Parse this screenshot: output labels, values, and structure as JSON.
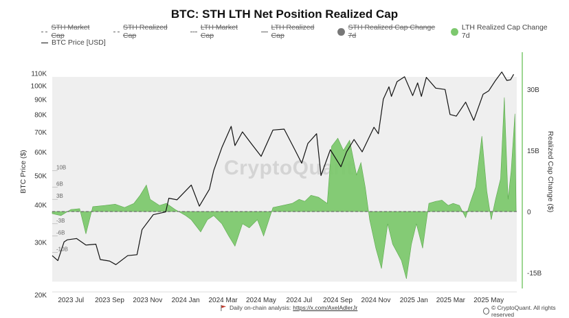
{
  "title": "BTC: STH LTH Net Position Realized Cap",
  "legend": [
    {
      "name": "STH Market Cap",
      "style": "dashed",
      "active": false
    },
    {
      "name": "STH Realized Cap",
      "style": "dashed",
      "active": false
    },
    {
      "name": "LTH Market Cap",
      "style": "dashed",
      "active": false
    },
    {
      "name": "LTH Realized Cap",
      "style": "solid",
      "active": false
    },
    {
      "name": "STH Realized Cap Change 7d",
      "style": "dot",
      "active": false,
      "color": "#777777"
    },
    {
      "name": "LTH Realized Cap Change 7d",
      "style": "dot",
      "active": true,
      "color": "#7dc86e"
    },
    {
      "name": "BTC Price [USD]",
      "style": "solid-dark",
      "active": true,
      "color": "#111111"
    }
  ],
  "watermark": "CryptoQuant",
  "footer": {
    "note": "Daily on-chain analysis:",
    "link": "https://x.com/AxelAdlerJr",
    "credit": "© CryptoQuant. All rights reserved"
  },
  "colors": {
    "price": "#111111",
    "fill": "#7dc86e",
    "fill_edge": "#5aa84c",
    "band": "#efefef",
    "zero": "#555555"
  },
  "chart_data": {
    "type": "line",
    "left_axis": {
      "label": "BTC Price ($)",
      "scale": "log",
      "ticks": [
        20000,
        30000,
        40000,
        50000,
        60000,
        70000,
        80000,
        90000,
        100000,
        110000
      ],
      "tick_labels": [
        "20K",
        "30K",
        "40K",
        "50K",
        "60K",
        "70K",
        "80K",
        "90K",
        "100K",
        "110K"
      ]
    },
    "right_axis": {
      "label": "Realized Cap Change ($)",
      "ticks": [
        -15000000000,
        0,
        15000000000,
        30000000000
      ],
      "tick_labels": [
        "-15B",
        "0",
        "15B",
        "30B"
      ],
      "inner_ticks": [
        10000000000,
        6000000000,
        3000000000,
        -3000000000,
        -6000000000,
        -10000000000
      ],
      "inner_tick_labels": [
        "10B",
        "6B",
        "3B",
        "-3B",
        "-6B",
        "-10B"
      ]
    },
    "x_ticks": [
      "2023-07-01",
      "2023-09-01",
      "2023-11-01",
      "2024-01-01",
      "2024-03-01",
      "2024-05-01",
      "2024-07-01",
      "2024-09-01",
      "2024-11-01",
      "2025-01-01",
      "2025-03-01",
      "2025-05-01"
    ],
    "x_tick_labels": [
      "2023 Jul",
      "2023 Sep",
      "2023 Nov",
      "2024 Jan",
      "2024 Mar",
      "2024 May",
      "2024 Jul",
      "2024 Sep",
      "2024 Nov",
      "2025 Jan",
      "2025 Mar",
      "2025 May"
    ],
    "x_range": [
      "2023-06-01",
      "2025-06-15"
    ],
    "series": [
      {
        "name": "BTC Price [USD]",
        "axis": "left",
        "points": [
          [
            "2023-06-01",
            27000
          ],
          [
            "2023-06-10",
            26000
          ],
          [
            "2023-06-20",
            30000
          ],
          [
            "2023-06-25",
            30500
          ],
          [
            "2023-07-10",
            30800
          ],
          [
            "2023-07-25",
            29300
          ],
          [
            "2023-08-10",
            29500
          ],
          [
            "2023-08-17",
            26200
          ],
          [
            "2023-09-01",
            25900
          ],
          [
            "2023-09-11",
            25200
          ],
          [
            "2023-09-30",
            27000
          ],
          [
            "2023-10-15",
            27200
          ],
          [
            "2023-10-23",
            33000
          ],
          [
            "2023-11-10",
            37000
          ],
          [
            "2023-11-30",
            37800
          ],
          [
            "2023-12-05",
            42000
          ],
          [
            "2023-12-18",
            41500
          ],
          [
            "2024-01-10",
            46500
          ],
          [
            "2024-01-23",
            39500
          ],
          [
            "2024-02-08",
            45000
          ],
          [
            "2024-02-15",
            52000
          ],
          [
            "2024-02-28",
            62000
          ],
          [
            "2024-03-14",
            73000
          ],
          [
            "2024-03-20",
            63000
          ],
          [
            "2024-04-01",
            70000
          ],
          [
            "2024-04-15",
            64000
          ],
          [
            "2024-05-01",
            58000
          ],
          [
            "2024-05-20",
            71000
          ],
          [
            "2024-06-07",
            71500
          ],
          [
            "2024-06-25",
            60500
          ],
          [
            "2024-07-05",
            55000
          ],
          [
            "2024-07-15",
            64000
          ],
          [
            "2024-07-29",
            69000
          ],
          [
            "2024-08-05",
            50000
          ],
          [
            "2024-08-20",
            61000
          ],
          [
            "2024-09-06",
            53500
          ],
          [
            "2024-09-15",
            60000
          ],
          [
            "2024-09-27",
            66000
          ],
          [
            "2024-10-10",
            60000
          ],
          [
            "2024-10-29",
            72500
          ],
          [
            "2024-11-05",
            69000
          ],
          [
            "2024-11-13",
            90000
          ],
          [
            "2024-11-22",
            99000
          ],
          [
            "2024-11-26",
            92000
          ],
          [
            "2024-12-05",
            103000
          ],
          [
            "2024-12-17",
            107000
          ],
          [
            "2024-12-30",
            92500
          ],
          [
            "2025-01-07",
            102000
          ],
          [
            "2025-01-13",
            92000
          ],
          [
            "2025-01-21",
            106500
          ],
          [
            "2025-02-05",
            98000
          ],
          [
            "2025-02-20",
            97000
          ],
          [
            "2025-02-28",
            80000
          ],
          [
            "2025-03-10",
            79000
          ],
          [
            "2025-03-25",
            88000
          ],
          [
            "2025-04-07",
            76500
          ],
          [
            "2025-04-22",
            93500
          ],
          [
            "2025-05-01",
            96000
          ],
          [
            "2025-05-12",
            104000
          ],
          [
            "2025-05-22",
            111000
          ],
          [
            "2025-05-30",
            104000
          ],
          [
            "2025-06-05",
            104500
          ],
          [
            "2025-06-10",
            109000
          ]
        ]
      },
      {
        "name": "LTH Realized Cap Change 7d",
        "axis": "right",
        "points": [
          [
            "2023-06-01",
            -0.5
          ],
          [
            "2023-06-15",
            -1
          ],
          [
            "2023-07-01",
            0.5
          ],
          [
            "2023-07-15",
            0.7
          ],
          [
            "2023-07-25",
            -5.5
          ],
          [
            "2023-08-05",
            1.2
          ],
          [
            "2023-08-25",
            1.5
          ],
          [
            "2023-09-10",
            1.8
          ],
          [
            "2023-09-25",
            1
          ],
          [
            "2023-10-10",
            2
          ],
          [
            "2023-10-20",
            4
          ],
          [
            "2023-10-30",
            6.5
          ],
          [
            "2023-11-05",
            3
          ],
          [
            "2023-11-20",
            1.5
          ],
          [
            "2023-12-01",
            2
          ],
          [
            "2023-12-15",
            0.5
          ],
          [
            "2024-01-01",
            -1
          ],
          [
            "2024-01-10",
            -2
          ],
          [
            "2024-01-25",
            -5
          ],
          [
            "2024-02-05",
            -2
          ],
          [
            "2024-02-15",
            -1
          ],
          [
            "2024-02-28",
            -3
          ],
          [
            "2024-03-10",
            -6
          ],
          [
            "2024-03-20",
            -8.5
          ],
          [
            "2024-04-01",
            -3
          ],
          [
            "2024-04-12",
            -4
          ],
          [
            "2024-04-25",
            -2
          ],
          [
            "2024-05-05",
            -6
          ],
          [
            "2024-05-20",
            1
          ],
          [
            "2024-06-05",
            1.5
          ],
          [
            "2024-06-20",
            2
          ],
          [
            "2024-07-01",
            3
          ],
          [
            "2024-07-10",
            2.5
          ],
          [
            "2024-07-20",
            4
          ],
          [
            "2024-08-01",
            3.5
          ],
          [
            "2024-08-15",
            2
          ],
          [
            "2024-08-22",
            16
          ],
          [
            "2024-09-01",
            18
          ],
          [
            "2024-09-10",
            15
          ],
          [
            "2024-09-20",
            17.5
          ],
          [
            "2024-10-01",
            9
          ],
          [
            "2024-10-08",
            12
          ],
          [
            "2024-10-15",
            6
          ],
          [
            "2024-10-22",
            -2
          ],
          [
            "2024-11-01",
            -9
          ],
          [
            "2024-11-10",
            -14
          ],
          [
            "2024-11-20",
            -3
          ],
          [
            "2024-11-28",
            -8
          ],
          [
            "2024-12-05",
            -10
          ],
          [
            "2024-12-12",
            -12
          ],
          [
            "2024-12-20",
            -16.5
          ],
          [
            "2024-12-28",
            -8
          ],
          [
            "2025-01-05",
            -3
          ],
          [
            "2025-01-15",
            -9
          ],
          [
            "2025-01-25",
            2
          ],
          [
            "2025-02-05",
            2.5
          ],
          [
            "2025-02-15",
            2.8
          ],
          [
            "2025-02-25",
            1.5
          ],
          [
            "2025-03-05",
            2
          ],
          [
            "2025-03-15",
            1.5
          ],
          [
            "2025-03-25",
            -1.5
          ],
          [
            "2025-04-01",
            2
          ],
          [
            "2025-04-10",
            6
          ],
          [
            "2025-04-20",
            18.5
          ],
          [
            "2025-04-28",
            5
          ],
          [
            "2025-05-05",
            -2
          ],
          [
            "2025-05-12",
            3
          ],
          [
            "2025-05-20",
            8
          ],
          [
            "2025-05-26",
            28
          ],
          [
            "2025-06-01",
            3
          ],
          [
            "2025-06-06",
            10
          ],
          [
            "2025-06-12",
            24
          ],
          [
            "2025-06-14",
            0
          ]
        ]
      }
    ],
    "grid": false,
    "legend_position": "top"
  }
}
